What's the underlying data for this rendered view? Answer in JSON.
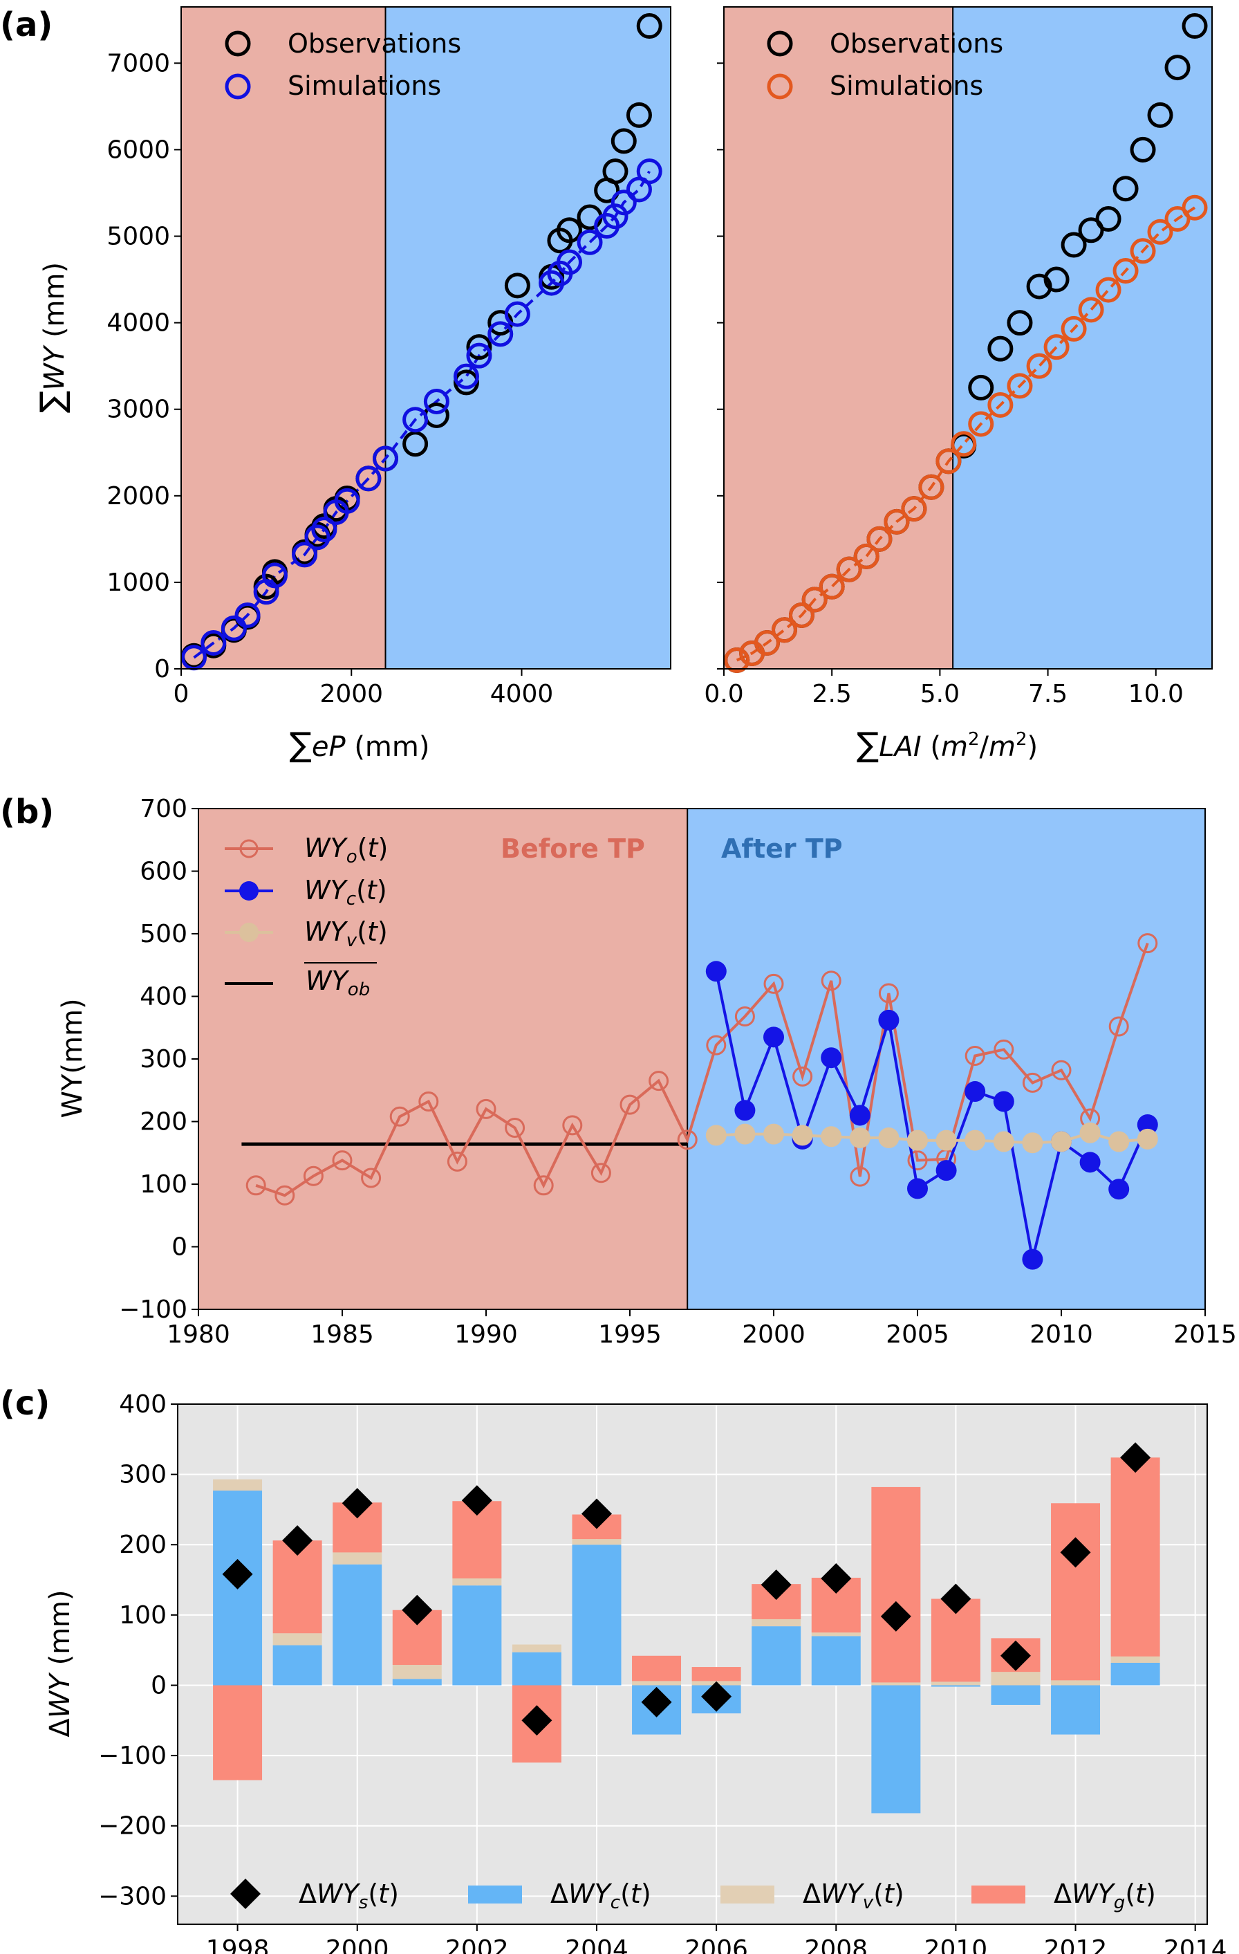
{
  "panel_labels": [
    "(a)",
    "(b)",
    "(c)"
  ],
  "colors": {
    "before_bg": "#eab0a6",
    "after_bg": "#93c5fb",
    "obs": "#000000",
    "sim_ep": "#1010e0",
    "sim_lai": "#e3581f",
    "wy_o": "#d96a5a",
    "wy_c": "#1414e6",
    "wy_v": "#dcc19d",
    "mean_line": "#000000",
    "bar_c": "#64b5f6",
    "bar_v": "#e2cfb4",
    "bar_g": "#fa8b7b",
    "panel_c_bg": "#e5e5e5"
  },
  "chart_data": [
    {
      "id": "a1",
      "type": "scatter",
      "xlabel": "∑eP (mm)",
      "ylabel": "∑WY (mm)",
      "xlim": [
        0,
        5750
      ],
      "ylim": [
        0,
        7650
      ],
      "xticks": [
        0,
        2000,
        4000
      ],
      "yticks": [
        0,
        1000,
        2000,
        3000,
        4000,
        5000,
        6000,
        7000
      ],
      "turning_point_x": 2400,
      "legend": [
        "Observations",
        "Simulations"
      ],
      "observations": {
        "x": [
          150,
          380,
          620,
          780,
          1000,
          1100,
          1450,
          1600,
          1680,
          1820,
          1950,
          2200,
          2400,
          2750,
          3000,
          3350,
          3500,
          3750,
          3950,
          4350,
          4450,
          4560,
          4800,
          5000,
          5100,
          5200,
          5380,
          5500
        ],
        "y": [
          150,
          270,
          450,
          600,
          950,
          1120,
          1350,
          1550,
          1650,
          1850,
          1970,
          2200,
          2430,
          2600,
          2930,
          3310,
          3720,
          4000,
          4430,
          4530,
          4950,
          5070,
          5220,
          5530,
          5750,
          6100,
          6400,
          7430
        ]
      },
      "simulations": {
        "x": [
          150,
          380,
          620,
          780,
          1000,
          1100,
          1450,
          1600,
          1680,
          1820,
          1950,
          2200,
          2400,
          2750,
          3000,
          3350,
          3500,
          3750,
          3950,
          4350,
          4450,
          4560,
          4800,
          5000,
          5100,
          5200,
          5380,
          5500
        ],
        "y": [
          130,
          300,
          470,
          620,
          890,
          1080,
          1320,
          1520,
          1610,
          1810,
          1940,
          2200,
          2430,
          2880,
          3090,
          3380,
          3620,
          3870,
          4100,
          4460,
          4570,
          4700,
          4930,
          5120,
          5230,
          5390,
          5540,
          5750
        ]
      }
    },
    {
      "id": "a2",
      "type": "scatter",
      "xlabel": "∑LAI (m²/m²)",
      "xlim": [
        0,
        11.3
      ],
      "ylim": [
        0,
        7650
      ],
      "xticks": [
        "0.0",
        "2.5",
        "5.0",
        "7.5",
        "10.0"
      ],
      "turning_point_x": 5.3,
      "legend": [
        "Observations",
        "Simulations"
      ],
      "observations": {
        "x": [
          0.3,
          0.65,
          1.0,
          1.4,
          1.8,
          2.1,
          2.5,
          2.9,
          3.3,
          3.6,
          4.0,
          4.4,
          4.8,
          5.2,
          5.55,
          5.95,
          6.4,
          6.85,
          7.3,
          7.7,
          8.1,
          8.5,
          8.9,
          9.3,
          9.7,
          10.1,
          10.5,
          10.9
        ],
        "y": [
          100,
          180,
          300,
          450,
          620,
          800,
          950,
          1150,
          1300,
          1500,
          1700,
          1850,
          2100,
          2400,
          2580,
          3250,
          3700,
          4000,
          4420,
          4500,
          4900,
          5070,
          5200,
          5550,
          6000,
          6400,
          6950,
          7430
        ]
      },
      "simulations": {
        "x": [
          0.3,
          0.65,
          1.0,
          1.4,
          1.8,
          2.1,
          2.5,
          2.9,
          3.3,
          3.6,
          4.0,
          4.4,
          4.8,
          5.2,
          5.55,
          5.95,
          6.4,
          6.85,
          7.3,
          7.7,
          8.1,
          8.5,
          8.9,
          9.3,
          9.7,
          10.1,
          10.5,
          10.9
        ],
        "y": [
          100,
          180,
          300,
          450,
          620,
          800,
          950,
          1150,
          1300,
          1500,
          1700,
          1850,
          2100,
          2400,
          2600,
          2830,
          3050,
          3270,
          3500,
          3720,
          3930,
          4150,
          4380,
          4600,
          4830,
          5050,
          5200,
          5330
        ]
      }
    },
    {
      "id": "b",
      "type": "line",
      "ylabel": "WY(mm)",
      "xlim": [
        1980,
        2015
      ],
      "ylim": [
        -100,
        700
      ],
      "xticks": [
        1980,
        1985,
        1990,
        1995,
        2000,
        2005,
        2010,
        2015
      ],
      "yticks": [
        -100,
        0,
        100,
        200,
        300,
        400,
        500,
        600,
        700
      ],
      "turning_point_x": 1997,
      "region_labels": [
        "Before TP",
        "After TP"
      ],
      "legend": [
        "WYo(t)",
        "WYc(t)",
        "WYv(t)",
        "WYob"
      ],
      "wy_o": {
        "x": [
          1982,
          1983,
          1984,
          1985,
          1986,
          1987,
          1988,
          1989,
          1990,
          1991,
          1992,
          1993,
          1994,
          1995,
          1996,
          1997,
          1998,
          1999,
          2000,
          2001,
          2002,
          2003,
          2004,
          2005,
          2006,
          2007,
          2008,
          2009,
          2010,
          2011,
          2012,
          2013
        ],
        "y": [
          98,
          82,
          113,
          138,
          110,
          208,
          232,
          136,
          220,
          190,
          98,
          194,
          118,
          227,
          265,
          171,
          322,
          368,
          420,
          272,
          425,
          112,
          405,
          138,
          140,
          305,
          315,
          262,
          282,
          205,
          352,
          485
        ]
      },
      "wy_c": {
        "x": [
          1998,
          1999,
          2000,
          2001,
          2002,
          2003,
          2004,
          2005,
          2006,
          2007,
          2008,
          2009,
          2010,
          2011,
          2012,
          2013
        ],
        "y": [
          440,
          218,
          335,
          172,
          302,
          210,
          362,
          93,
          122,
          248,
          232,
          -20,
          168,
          135,
          92,
          195
        ]
      },
      "wy_v": {
        "x": [
          1998,
          1999,
          2000,
          2001,
          2002,
          2003,
          2004,
          2005,
          2006,
          2007,
          2008,
          2009,
          2010,
          2011,
          2012,
          2013
        ],
        "y": [
          178,
          180,
          180,
          178,
          176,
          174,
          174,
          170,
          170,
          170,
          168,
          166,
          168,
          182,
          168,
          172
        ]
      },
      "wy_ob_mean": {
        "y": 164,
        "x_range": [
          1981.5,
          1997
        ]
      }
    },
    {
      "id": "c",
      "type": "bar",
      "ylabel": "ΔWY (mm)",
      "xlim": [
        1997,
        2014.2
      ],
      "ylim": [
        -340,
        400
      ],
      "xticks": [
        1998,
        2000,
        2002,
        2004,
        2006,
        2008,
        2010,
        2012,
        2014
      ],
      "yticks": [
        -300,
        -200,
        -100,
        0,
        100,
        200,
        300,
        400
      ],
      "legend": [
        "ΔWYs(t)",
        "ΔWYc(t)",
        "ΔWYv(t)",
        "ΔWYg(t)"
      ],
      "categories": [
        1998,
        1999,
        2000,
        2001,
        2002,
        2003,
        2004,
        2005,
        2006,
        2007,
        2008,
        2009,
        2010,
        2011,
        2012,
        2013
      ],
      "series": [
        {
          "name": "ΔWYc(t)",
          "values": [
            277,
            57,
            172,
            9,
            142,
            47,
            200,
            -70,
            -40,
            84,
            70,
            -182,
            -2,
            -28,
            -70,
            32
          ]
        },
        {
          "name": "ΔWYv(t)",
          "values": [
            16,
            17,
            17,
            20,
            10,
            11,
            8,
            6,
            6,
            10,
            5,
            4,
            5,
            19,
            7,
            9
          ]
        },
        {
          "name": "ΔWYg(t)",
          "values": [
            -135,
            132,
            71,
            78,
            110,
            -110,
            35,
            36,
            20,
            50,
            78,
            278,
            118,
            48,
            252,
            283
          ]
        },
        {
          "name": "ΔWYs(t)",
          "values": [
            158,
            206,
            259,
            107,
            263,
            -50,
            244,
            -24,
            -16,
            143,
            152,
            98,
            123,
            42,
            189,
            324
          ]
        }
      ]
    }
  ]
}
